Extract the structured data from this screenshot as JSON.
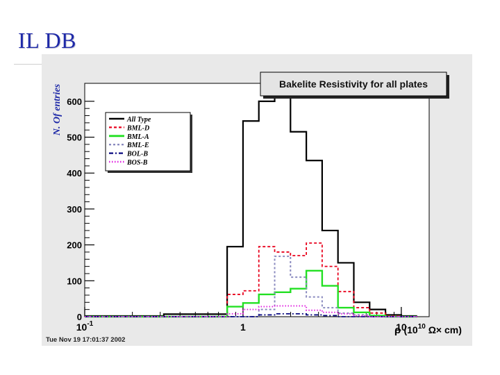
{
  "slide": {
    "title": "IL DB"
  },
  "timestamp": "Tue Nov 19 17:01:37 2002",
  "colors": {
    "slide_title": "#1f2aa8",
    "ylabel": "#1f2aa8",
    "plot_bg": "#e9e9e9"
  },
  "chart_data": {
    "type": "line",
    "title": "Bakelite Resistivity for all plates",
    "xlabel": "ρ (10^10 Ω× cm)",
    "xlabel_parts": {
      "sym": "ρ",
      "pre": "(10",
      "sup": "10",
      "post": " Ω× cm)"
    },
    "ylabel": "N. Of entries",
    "x_scale": "log",
    "xlim": [
      0.1,
      15
    ],
    "ylim": [
      0,
      650
    ],
    "y_ticks": [
      0,
      100,
      200,
      300,
      400,
      500,
      600
    ],
    "y_tick_labels": [
      "0",
      "100",
      "200",
      "300",
      "400",
      "500",
      "600"
    ],
    "x_ticks": [
      0.1,
      1,
      10
    ],
    "x_tick_labels": [
      {
        "base": "10",
        "exp": "-1"
      },
      {
        "base": "1",
        "exp": ""
      },
      {
        "base": "10",
        "exp": ""
      }
    ],
    "grid": false,
    "legend_position": "top-left",
    "bin_edges": [
      0.1,
      0.126,
      0.158,
      0.2,
      0.251,
      0.316,
      0.398,
      0.501,
      0.631,
      0.794,
      1.0,
      1.259,
      1.585,
      1.995,
      2.512,
      3.162,
      3.981,
      5.012,
      6.31,
      7.943,
      10.0,
      12.589
    ],
    "series": [
      {
        "name": "All Type",
        "color": "#000000",
        "dash": "",
        "width": 2.2,
        "values": [
          2,
          2,
          2,
          2,
          2,
          7,
          7,
          7,
          7,
          195,
          545,
          600,
          650,
          515,
          435,
          240,
          150,
          40,
          20,
          5,
          2
        ]
      },
      {
        "name": "BML-D",
        "color": "#e8001c",
        "dash": "4,3",
        "width": 1.8,
        "values": [
          0,
          0,
          0,
          0,
          0,
          0,
          0,
          0,
          0,
          62,
          72,
          195,
          180,
          170,
          205,
          140,
          70,
          25,
          10,
          2,
          0
        ]
      },
      {
        "name": "BML-A",
        "color": "#22e022",
        "dash": "",
        "width": 2.4,
        "values": [
          0,
          0,
          0,
          0,
          0,
          0,
          0,
          0,
          0,
          28,
          38,
          62,
          68,
          78,
          128,
          86,
          25,
          12,
          3,
          0,
          0
        ]
      },
      {
        "name": "BML-E",
        "color": "#8a8abf",
        "dash": "3,3",
        "width": 2,
        "values": [
          0,
          0,
          0,
          0,
          0,
          0,
          0,
          0,
          0,
          0,
          0,
          20,
          168,
          110,
          55,
          25,
          10,
          5,
          0,
          0,
          0
        ]
      },
      {
        "name": "BOL-B",
        "color": "#0a0a80",
        "dash": "6,3,2,3",
        "width": 1.8,
        "values": [
          0,
          0,
          0,
          0,
          0,
          0,
          0,
          0,
          0,
          0,
          0,
          5,
          8,
          8,
          5,
          3,
          0,
          0,
          0,
          0,
          0
        ]
      },
      {
        "name": "BOS-B",
        "color": "#e020e0",
        "dash": "1.5,2.5",
        "width": 2,
        "values": [
          0,
          0,
          0,
          0,
          0,
          0,
          0,
          0,
          0,
          8,
          20,
          28,
          30,
          30,
          18,
          12,
          8,
          3,
          0,
          0,
          0
        ]
      }
    ]
  }
}
